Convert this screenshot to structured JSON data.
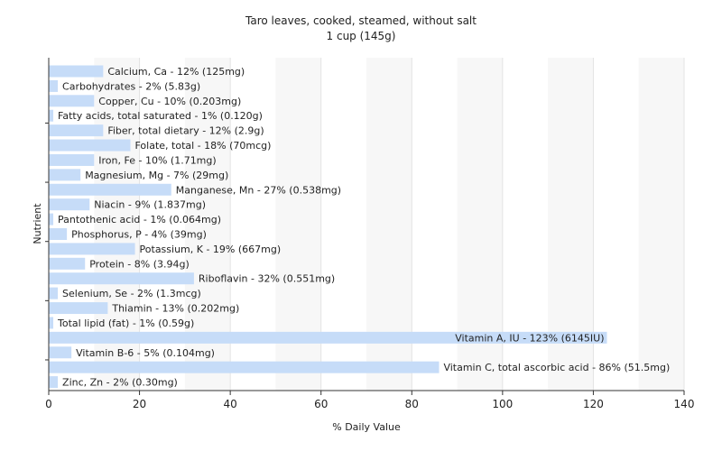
{
  "chart_data": {
    "type": "bar",
    "orientation": "horizontal",
    "title": "Taro leaves, cooked, steamed, without salt",
    "subtitle": "1 cup (145g)",
    "xlabel": "% Daily Value",
    "ylabel": "Nutrient",
    "xlim": [
      0,
      140
    ],
    "xticks": [
      0,
      20,
      40,
      60,
      80,
      100,
      120,
      140
    ],
    "grid": true,
    "bar_color": "#c6dcf8",
    "categories": [
      "Calcium, Ca",
      "Carbohydrates",
      "Copper, Cu",
      "Fatty acids, total saturated",
      "Fiber, total dietary",
      "Folate, total",
      "Iron, Fe",
      "Magnesium, Mg",
      "Manganese, Mn",
      "Niacin",
      "Pantothenic acid",
      "Phosphorus, P",
      "Potassium, K",
      "Protein",
      "Riboflavin",
      "Selenium, Se",
      "Thiamin",
      "Total lipid (fat)",
      "Vitamin A, IU",
      "Vitamin B-6",
      "Vitamin C, total ascorbic acid",
      "Zinc, Zn"
    ],
    "values": [
      12,
      2,
      10,
      1,
      12,
      18,
      10,
      7,
      27,
      9,
      1,
      4,
      19,
      8,
      32,
      2,
      13,
      1,
      123,
      5,
      86,
      2
    ],
    "labels": [
      "Calcium, Ca - 12% (125mg)",
      "Carbohydrates - 2% (5.83g)",
      "Copper, Cu - 10% (0.203mg)",
      "Fatty acids, total saturated - 1% (0.120g)",
      "Fiber, total dietary - 12% (2.9g)",
      "Folate, total - 18% (70mcg)",
      "Iron, Fe - 10% (1.71mg)",
      "Magnesium, Mg - 7% (29mg)",
      "Manganese, Mn - 27% (0.538mg)",
      "Niacin - 9% (1.837mg)",
      "Pantothenic acid - 1% (0.064mg)",
      "Phosphorus, P - 4% (39mg)",
      "Potassium, K - 19% (667mg)",
      "Protein - 8% (3.94g)",
      "Riboflavin - 32% (0.551mg)",
      "Selenium, Se - 2% (1.3mcg)",
      "Thiamin - 13% (0.202mg)",
      "Total lipid (fat) - 1% (0.59g)",
      "Vitamin A, IU - 123% (6145IU)",
      "Vitamin B-6 - 5% (0.104mg)",
      "Vitamin C, total ascorbic acid - 86% (51.5mg)",
      "Zinc, Zn - 2% (0.30mg)"
    ]
  }
}
